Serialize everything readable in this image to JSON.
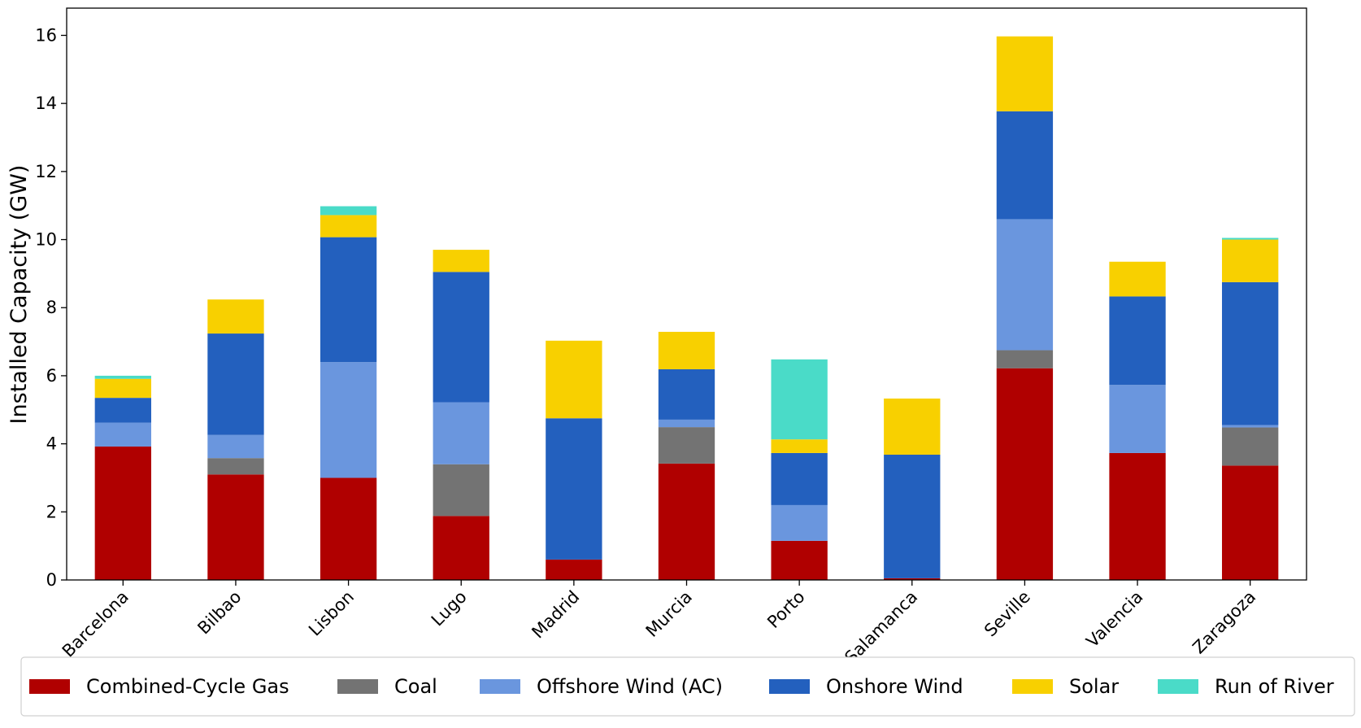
{
  "chart_data": {
    "type": "bar",
    "stacked": true,
    "ylabel": "Installed Capacity (GW)",
    "xlabel": "",
    "ylim": [
      0,
      16.8
    ],
    "yticks": [
      0,
      2,
      4,
      6,
      8,
      10,
      12,
      14,
      16
    ],
    "grid": false,
    "legend_position": "bottom",
    "categories": [
      "Barcelona",
      "Bilbao",
      "Lisbon",
      "Lugo",
      "Madrid",
      "Murcia",
      "Porto",
      "Salamanca",
      "Seville",
      "Valencia",
      "Zaragoza"
    ],
    "series": [
      {
        "name": "Combined-Cycle Gas",
        "color": "#b00000",
        "values": [
          3.92,
          3.1,
          3.0,
          1.88,
          0.6,
          3.42,
          1.15,
          0.05,
          6.22,
          3.73,
          3.36
        ]
      },
      {
        "name": "Coal",
        "color": "#737373",
        "values": [
          0.0,
          0.48,
          0.0,
          1.52,
          0.0,
          1.07,
          0.0,
          0.0,
          0.53,
          0.0,
          1.12
        ]
      },
      {
        "name": "Offshore Wind (AC)",
        "color": "#6a96de",
        "values": [
          0.7,
          0.68,
          3.4,
          1.82,
          0.0,
          0.22,
          1.05,
          0.0,
          3.85,
          2.0,
          0.07
        ]
      },
      {
        "name": "Onshore Wind",
        "color": "#2360be",
        "values": [
          0.73,
          2.98,
          3.67,
          3.83,
          4.15,
          1.48,
          1.53,
          3.63,
          3.17,
          2.6,
          4.2
        ]
      },
      {
        "name": "Solar",
        "color": "#f8d000",
        "values": [
          0.56,
          1.0,
          0.65,
          0.65,
          2.28,
          1.1,
          0.4,
          1.65,
          2.2,
          1.02,
          1.25
        ]
      },
      {
        "name": "Run of River",
        "color": "#4adbc8",
        "values": [
          0.09,
          0.0,
          0.26,
          0.0,
          0.0,
          0.0,
          2.35,
          0.0,
          0.0,
          0.0,
          0.05
        ]
      }
    ]
  }
}
